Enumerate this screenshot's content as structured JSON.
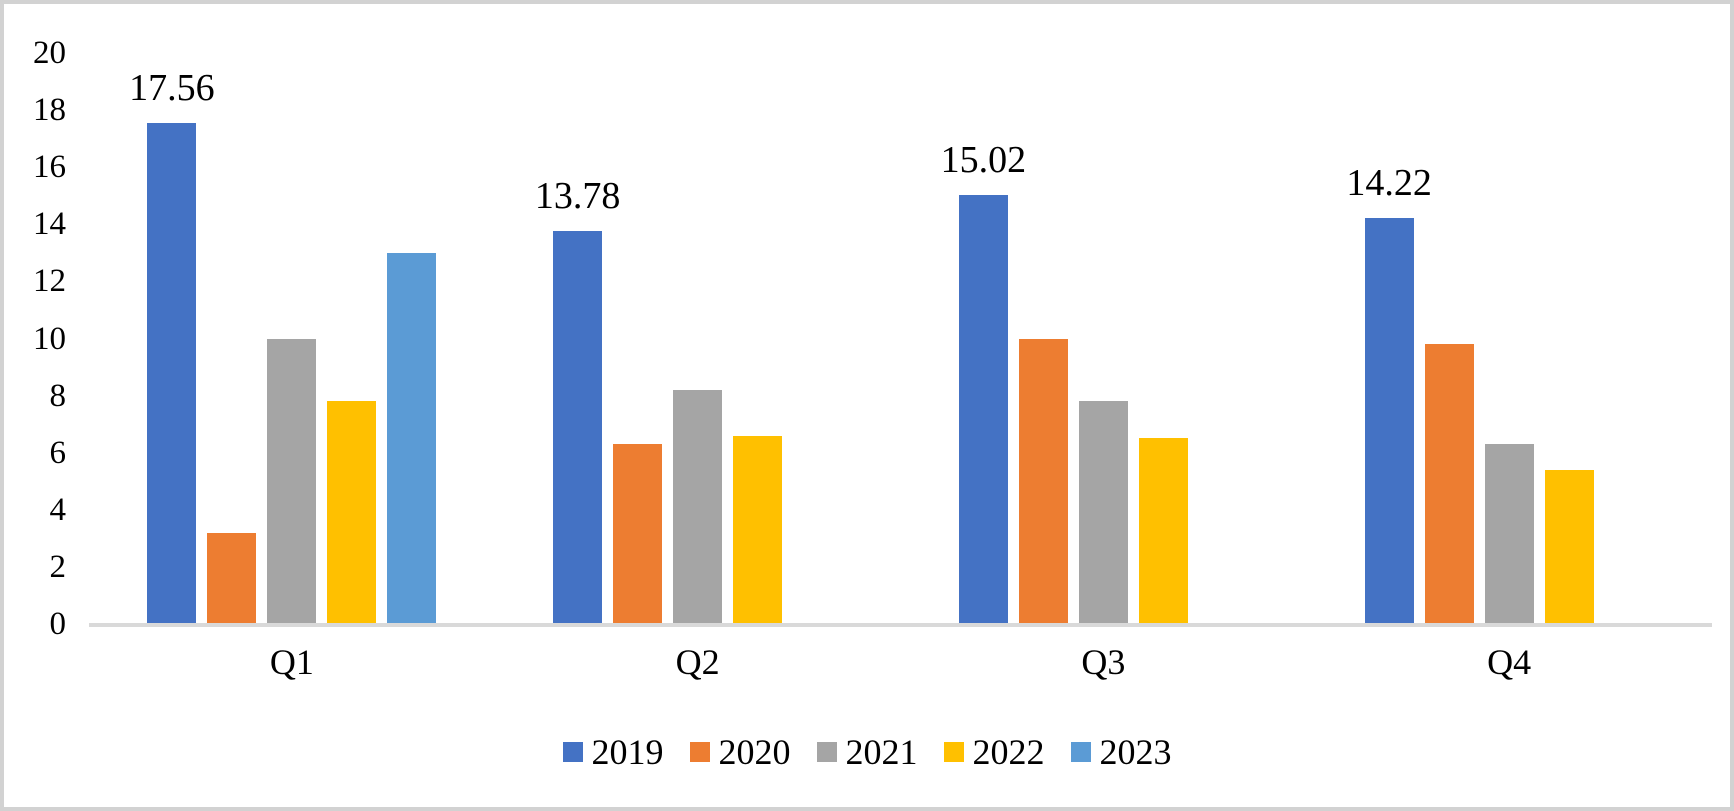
{
  "chart_data": {
    "type": "bar",
    "title": "",
    "xlabel": "",
    "ylabel": "",
    "categories": [
      "Q1",
      "Q2",
      "Q3",
      "Q4"
    ],
    "series": [
      {
        "name": "2019",
        "color": "#4472C4",
        "values": [
          17.56,
          13.78,
          15.02,
          14.22
        ],
        "show_labels": true,
        "value_labels": [
          "17.56",
          "13.78",
          "15.02",
          "14.22"
        ]
      },
      {
        "name": "2020",
        "color": "#ED7D31",
        "values": [
          3.2,
          6.3,
          10.0,
          9.8
        ]
      },
      {
        "name": "2021",
        "color": "#A5A5A5",
        "values": [
          10.0,
          8.2,
          7.8,
          6.3
        ]
      },
      {
        "name": "2022",
        "color": "#FFC000",
        "values": [
          7.8,
          6.6,
          6.5,
          5.4
        ]
      },
      {
        "name": "2023",
        "color": "#5B9BD5",
        "values": [
          13.0,
          null,
          null,
          null
        ]
      }
    ],
    "ylim": [
      0,
      20
    ],
    "yticks": [
      0,
      2,
      4,
      6,
      8,
      10,
      12,
      14,
      16,
      18,
      20
    ],
    "grid": false,
    "legend_position": "bottom"
  },
  "colors": {
    "axis_line": "#D9D9D9",
    "frame_border": "#D2D2D2",
    "background": "#FFFFFF",
    "text": "#000000"
  }
}
